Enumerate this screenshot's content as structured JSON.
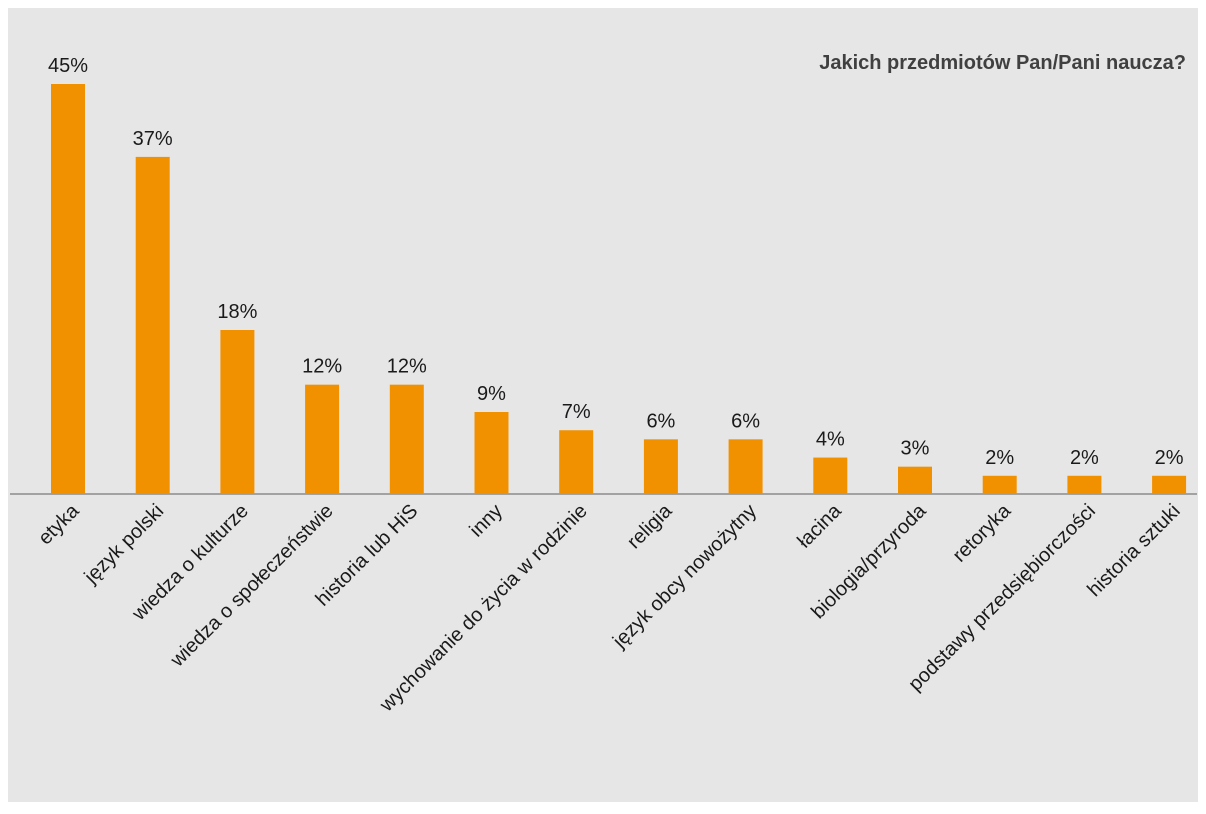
{
  "chart_data": {
    "type": "bar",
    "title": "Jakich przedmiotów Pan/Pani naucza?",
    "categories": [
      "etyka",
      "język polski",
      "wiedza o kulturze",
      "wiedza o społeczeństwie",
      "historia lub HiS",
      "inny",
      "wychowanie do życia w rodzinie",
      "religia",
      "język obcy nowożytny",
      "łacina",
      "biologia/przyroda",
      "retoryka",
      "podstawy przedsiębiorczości",
      "historia sztuki"
    ],
    "values": [
      45,
      37,
      18,
      12,
      12,
      9,
      7,
      6,
      6,
      4,
      3,
      2,
      2,
      2
    ],
    "value_labels": [
      "45%",
      "37%",
      "18%",
      "12%",
      "12%",
      "9%",
      "7%",
      "6%",
      "6%",
      "4%",
      "3%",
      "2%",
      "2%",
      "2%"
    ],
    "color": "#f29100"
  }
}
